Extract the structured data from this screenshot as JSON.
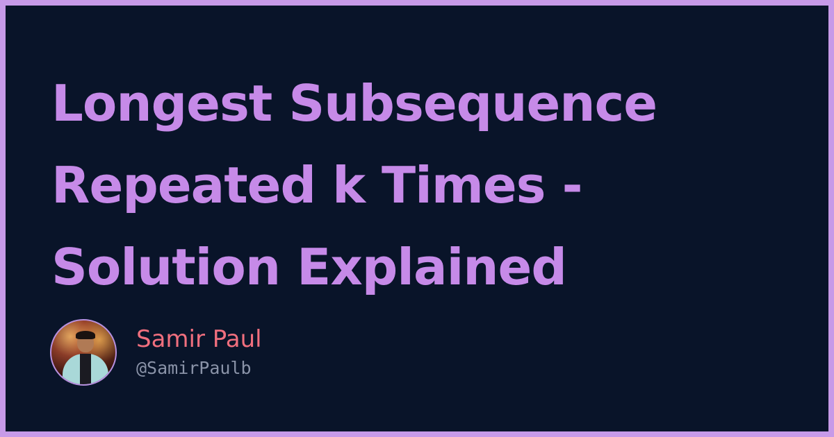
{
  "title_lines": [
    "Longest Subsequence",
    "Repeated k Times -",
    "Solution Explained"
  ],
  "author": {
    "name": "Samir Paul",
    "handle": "@SamirPaulb",
    "avatar_icon": "avatar-photo"
  },
  "colors": {
    "frame": "#c79ae8",
    "background": "#091429",
    "title": "#c68ae8",
    "name": "#f06f7e",
    "handle": "#8a93a8"
  }
}
